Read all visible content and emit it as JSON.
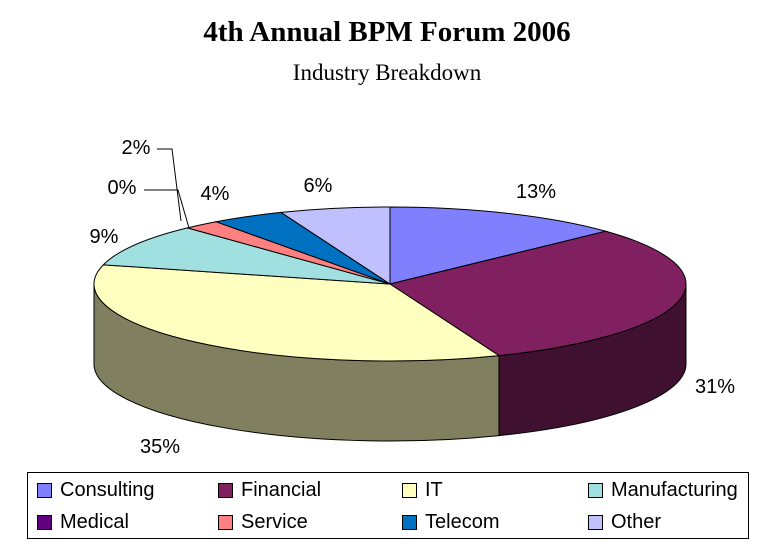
{
  "chart_data": {
    "type": "pie",
    "title": "4th Annual BPM Forum 2006",
    "subtitle": "Industry Breakdown",
    "style": "3d",
    "legend_position": "bottom",
    "categories": [
      "Consulting",
      "Financial",
      "IT",
      "Manufacturing",
      "Medical",
      "Service",
      "Telecom",
      "Other"
    ],
    "values": [
      13,
      31,
      35,
      9,
      0,
      2,
      4,
      6
    ],
    "labels": [
      "13%",
      "31%",
      "35%",
      "9%",
      "0%",
      "2%",
      "4%",
      "6%"
    ],
    "colors": [
      "#8080ff",
      "#802060",
      "#ffffc0",
      "#a0e0e0",
      "#600080",
      "#ff8080",
      "#0070c0",
      "#c0c0ff"
    ]
  }
}
